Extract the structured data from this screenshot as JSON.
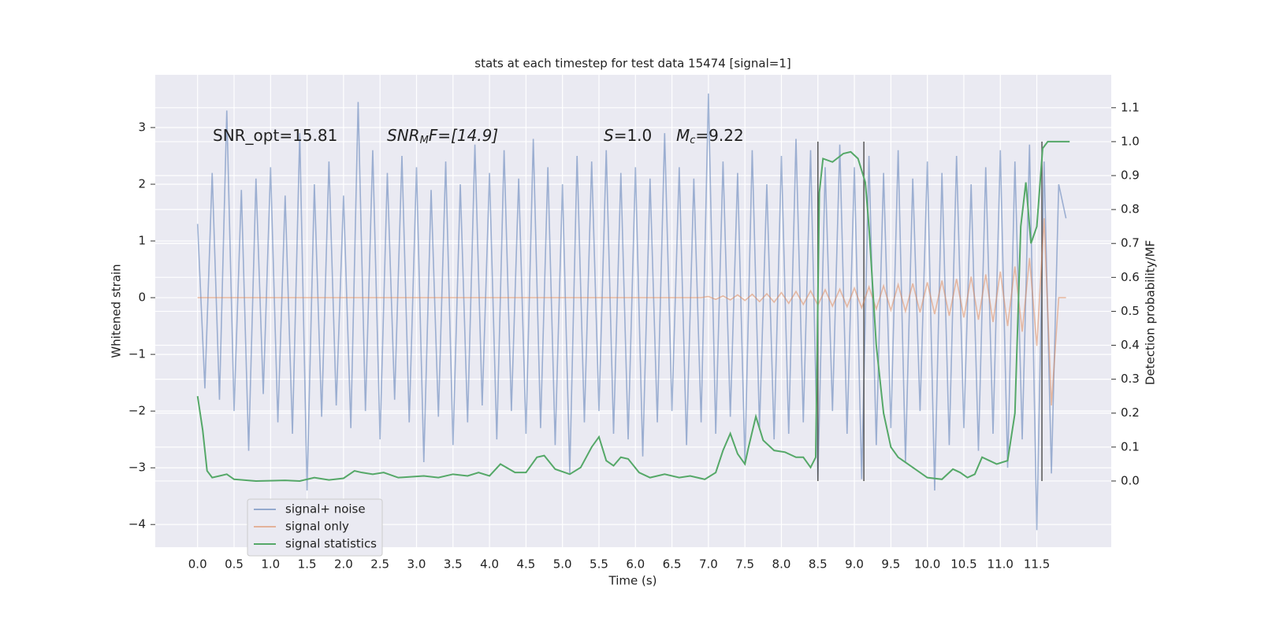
{
  "chart_data": {
    "type": "line",
    "title": "stats at each timestep for test data 15474 [signal=1]",
    "xlabel": "Time (s)",
    "ylabel": "Whitened strain",
    "y2label": "Detection probability/MF",
    "annotations": [
      {
        "text": "SNR_opt=15.81"
      },
      {
        "italic": "SNR",
        "sub": "M",
        "text": "F=[14.9]"
      },
      {
        "italic": "S",
        "text": "=1.0"
      },
      {
        "italic": "M",
        "sub": "c",
        "text": "=9.22"
      }
    ],
    "xlim": [
      -0.58,
      12.52
    ],
    "ylim": [
      -4.4,
      3.93
    ],
    "y2lim": [
      -0.195,
      1.197
    ],
    "grid": true,
    "legend": "lower left",
    "xticks": [
      {
        "value": 0,
        "label": "0.0"
      },
      {
        "value": 0.5,
        "label": "0.5"
      },
      {
        "value": 1,
        "label": "1.0"
      },
      {
        "value": 1.5,
        "label": "1.5"
      },
      {
        "value": 2,
        "label": "2.0"
      },
      {
        "value": 2.5,
        "label": "2.5"
      },
      {
        "value": 3,
        "label": "3.0"
      },
      {
        "value": 3.5,
        "label": "3.5"
      },
      {
        "value": 4,
        "label": "4.0"
      },
      {
        "value": 4.5,
        "label": "4.5"
      },
      {
        "value": 5,
        "label": "5.0"
      },
      {
        "value": 5.5,
        "label": "5.5"
      },
      {
        "value": 6,
        "label": "6.0"
      },
      {
        "value": 6.5,
        "label": "6.5"
      },
      {
        "value": 7,
        "label": "7.0"
      },
      {
        "value": 7.5,
        "label": "7.5"
      },
      {
        "value": 8,
        "label": "8.0"
      },
      {
        "value": 8.5,
        "label": "8.5"
      },
      {
        "value": 9,
        "label": "9.0"
      },
      {
        "value": 9.5,
        "label": "9.5"
      },
      {
        "value": 10,
        "label": "10.0"
      },
      {
        "value": 10.5,
        "label": "10.5"
      },
      {
        "value": 11,
        "label": "11.0"
      },
      {
        "value": 11.5,
        "label": "11.5"
      }
    ],
    "yticks": [
      {
        "value": -4,
        "label": "−4"
      },
      {
        "value": -3,
        "label": "−3"
      },
      {
        "value": -2,
        "label": "−2"
      },
      {
        "value": -1,
        "label": "−1"
      },
      0,
      1,
      2,
      3
    ],
    "y2ticks": [
      {
        "value": 0,
        "label": "0.0"
      },
      {
        "value": 0.1,
        "label": "0.1"
      },
      {
        "value": 0.2,
        "label": "0.2"
      },
      {
        "value": 0.3,
        "label": "0.3"
      },
      {
        "value": 0.4,
        "label": "0.4"
      },
      {
        "value": 0.5,
        "label": "0.5"
      },
      {
        "value": 0.6,
        "label": "0.6"
      },
      {
        "value": 0.7,
        "label": "0.7"
      },
      {
        "value": 0.8,
        "label": "0.8"
      },
      {
        "value": 0.9,
        "label": "0.9"
      },
      {
        "value": 1,
        "label": "1.0"
      },
      {
        "value": 1.1,
        "label": "1.1"
      }
    ],
    "vlines": [
      8.5,
      9.13,
      11.57
    ],
    "vline_color": "#555555",
    "x": [
      0,
      0.1,
      0.2,
      0.3,
      0.4,
      0.5,
      0.6,
      0.7,
      0.8,
      0.9,
      1,
      1.1,
      1.2,
      1.3,
      1.4,
      1.5,
      1.6,
      1.7,
      1.8,
      1.9,
      2,
      2.1,
      2.2,
      2.3,
      2.4,
      2.5,
      2.6,
      2.7,
      2.8,
      2.9,
      3,
      3.1,
      3.2,
      3.3,
      3.4,
      3.5,
      3.6,
      3.7,
      3.8,
      3.9,
      4,
      4.1,
      4.2,
      4.3,
      4.4,
      4.5,
      4.6,
      4.7,
      4.8,
      4.9,
      5,
      5.1,
      5.2,
      5.3,
      5.4,
      5.5,
      5.6,
      5.7,
      5.8,
      5.9,
      6,
      6.1,
      6.2,
      6.3,
      6.4,
      6.5,
      6.6,
      6.7,
      6.8,
      6.9,
      7,
      7.1,
      7.2,
      7.3,
      7.4,
      7.5,
      7.6,
      7.7,
      7.8,
      7.9,
      8,
      8.1,
      8.2,
      8.3,
      8.4,
      8.5,
      8.6,
      8.7,
      8.8,
      8.9,
      9,
      9.1,
      9.2,
      9.3,
      9.4,
      9.5,
      9.6,
      9.7,
      9.8,
      9.9,
      10,
      10.1,
      10.2,
      10.3,
      10.4,
      10.5,
      10.6,
      10.7,
      10.8,
      10.9,
      11,
      11.1,
      11.2,
      11.3,
      11.4,
      11.5,
      11.6,
      11.7,
      11.8,
      11.9
    ],
    "series": [
      {
        "name": "signal+ noise",
        "color": "#4c72b0",
        "values": [
          1.3,
          -1.6,
          2.2,
          -1.8,
          3.3,
          -2.0,
          1.9,
          -2.7,
          2.1,
          -1.7,
          2.3,
          -2.2,
          1.8,
          -2.4,
          2.9,
          -3.4,
          2.0,
          -2.1,
          2.4,
          -1.9,
          1.8,
          -2.3,
          3.45,
          -2.0,
          2.6,
          -2.5,
          2.2,
          -1.8,
          2.5,
          -2.2,
          2.3,
          -2.9,
          1.9,
          -2.1,
          2.4,
          -2.6,
          2.0,
          -2.2,
          2.7,
          -1.9,
          2.2,
          -2.5,
          2.6,
          -2.0,
          2.1,
          -2.4,
          2.8,
          -2.3,
          2.3,
          -2.6,
          2.0,
          -3.1,
          2.5,
          -2.2,
          2.4,
          -2.0,
          2.6,
          -2.4,
          2.2,
          -2.5,
          2.3,
          -2.8,
          2.1,
          -2.2,
          2.9,
          -2.0,
          2.3,
          -2.6,
          2.1,
          -2.2,
          3.6,
          -2.4,
          2.4,
          -2.1,
          2.2,
          -2.9,
          2.6,
          -2.3,
          2.0,
          -2.5,
          2.5,
          -2.4,
          2.8,
          -2.2,
          2.6,
          -3.2,
          2.3,
          -2.0,
          2.7,
          -2.4,
          2.3,
          -3.2,
          2.5,
          -2.6,
          2.2,
          -2.3,
          2.6,
          -2.9,
          2.1,
          -2.0,
          2.4,
          -3.4,
          2.2,
          -2.6,
          2.5,
          -2.3,
          2.0,
          -2.7,
          2.3,
          -2.4,
          2.6,
          -3.0,
          2.4,
          -2.5,
          2.7,
          -4.1,
          2.4,
          -3.1,
          2.0,
          1.4
        ]
      },
      {
        "name": "signal only",
        "color": "#dd8452",
        "values": [
          0,
          0,
          0,
          0,
          0,
          0,
          0,
          0,
          0,
          0,
          0,
          0,
          0,
          0,
          0,
          0,
          0,
          0,
          0,
          0,
          0,
          0,
          0,
          0,
          0,
          0,
          0,
          0,
          0,
          0,
          0,
          0,
          0,
          0,
          0,
          0,
          0,
          0,
          0,
          0,
          0,
          0,
          0,
          0,
          0,
          0,
          0,
          0,
          0,
          0,
          0,
          0,
          0,
          0,
          0,
          0,
          0,
          0,
          0,
          0,
          0,
          0,
          0,
          0,
          0,
          0,
          0,
          0,
          0,
          0,
          0.02,
          -0.03,
          0.03,
          -0.04,
          0.05,
          -0.05,
          0.06,
          -0.07,
          0.07,
          -0.08,
          0.09,
          -0.1,
          0.11,
          -0.12,
          0.12,
          -0.13,
          0.14,
          -0.15,
          0.15,
          -0.16,
          0.17,
          -0.18,
          0.19,
          -0.2,
          0.21,
          -0.22,
          0.23,
          -0.24,
          0.25,
          -0.26,
          0.27,
          -0.29,
          0.3,
          -0.32,
          0.33,
          -0.35,
          0.37,
          -0.39,
          0.41,
          -0.43,
          0.46,
          -0.5,
          0.55,
          -0.6,
          0.7,
          -0.85,
          1.4,
          -1.9,
          0,
          0
        ]
      },
      {
        "name": "signal statistics",
        "color": "#55a868",
        "axis": "y2",
        "x": [
          0,
          0.07,
          0.13,
          0.2,
          0.3,
          0.4,
          0.5,
          0.8,
          1.2,
          1.4,
          1.6,
          1.8,
          2.0,
          2.15,
          2.25,
          2.4,
          2.55,
          2.75,
          3.1,
          3.3,
          3.5,
          3.7,
          3.85,
          4.0,
          4.15,
          4.35,
          4.5,
          4.65,
          4.75,
          4.9,
          5.1,
          5.25,
          5.4,
          5.5,
          5.6,
          5.7,
          5.8,
          5.9,
          6.05,
          6.2,
          6.4,
          6.6,
          6.75,
          6.95,
          7.1,
          7.2,
          7.3,
          7.4,
          7.5,
          7.55,
          7.65,
          7.75,
          7.9,
          8.05,
          8.2,
          8.3,
          8.4,
          8.47,
          8.52,
          8.57,
          8.7,
          8.85,
          8.95,
          9.05,
          9.15,
          9.2,
          9.3,
          9.4,
          9.5,
          9.6,
          9.8,
          10.0,
          10.2,
          10.35,
          10.45,
          10.55,
          10.65,
          10.75,
          10.85,
          10.95,
          11.1,
          11.2,
          11.28,
          11.35,
          11.42,
          11.5,
          11.58,
          11.65,
          11.95
        ],
        "values": [
          0.25,
          0.15,
          0.03,
          0.01,
          0.015,
          0.02,
          0.005,
          0.0,
          0.002,
          0.0,
          0.01,
          0.003,
          0.008,
          0.03,
          0.025,
          0.02,
          0.025,
          0.01,
          0.015,
          0.01,
          0.02,
          0.015,
          0.025,
          0.015,
          0.05,
          0.025,
          0.025,
          0.07,
          0.075,
          0.035,
          0.02,
          0.04,
          0.1,
          0.13,
          0.06,
          0.045,
          0.07,
          0.065,
          0.025,
          0.01,
          0.02,
          0.01,
          0.015,
          0.005,
          0.025,
          0.09,
          0.14,
          0.08,
          0.05,
          0.1,
          0.19,
          0.12,
          0.09,
          0.085,
          0.07,
          0.07,
          0.04,
          0.07,
          0.85,
          0.95,
          0.94,
          0.965,
          0.97,
          0.95,
          0.88,
          0.75,
          0.4,
          0.2,
          0.1,
          0.07,
          0.04,
          0.01,
          0.005,
          0.035,
          0.025,
          0.01,
          0.02,
          0.07,
          0.06,
          0.05,
          0.06,
          0.2,
          0.75,
          0.88,
          0.7,
          0.75,
          0.98,
          1.0,
          1.0
        ]
      }
    ]
  }
}
